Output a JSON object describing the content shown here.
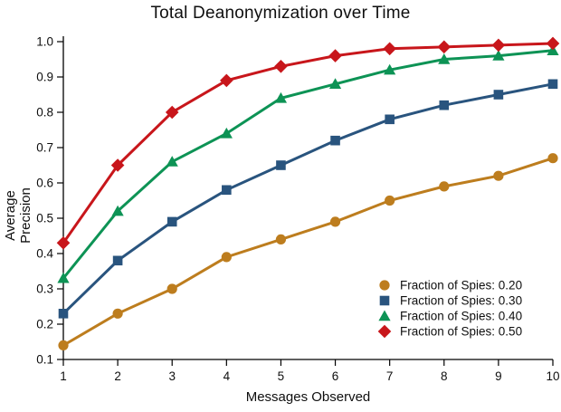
{
  "chart_data": {
    "type": "line",
    "title": "Total Deanonymization over Time",
    "xlabel": "Messages Observed",
    "ylabel": "Average Precision",
    "x": [
      1,
      2,
      3,
      4,
      5,
      6,
      7,
      8,
      9,
      10
    ],
    "xticks": [
      "1",
      "2",
      "3",
      "4",
      "5",
      "6",
      "7",
      "8",
      "9",
      "10"
    ],
    "yticks": [
      "0.1",
      "0.2",
      "0.3",
      "0.4",
      "0.5",
      "0.6",
      "0.7",
      "0.8",
      "0.9",
      "1.0"
    ],
    "xlim": [
      1,
      10
    ],
    "ylim": [
      0.1,
      1.0
    ],
    "grid": false,
    "legend_position": "lower right",
    "axis_color": "#000000",
    "series": [
      {
        "name": "Fraction of Spies: 0.20",
        "marker": "circle",
        "color": "#BD7D1E",
        "values": [
          0.14,
          0.23,
          0.3,
          0.39,
          0.44,
          0.49,
          0.55,
          0.59,
          0.62,
          0.67
        ]
      },
      {
        "name": "Fraction of Spies: 0.30",
        "marker": "square",
        "color": "#29547E",
        "values": [
          0.23,
          0.38,
          0.49,
          0.58,
          0.65,
          0.72,
          0.78,
          0.82,
          0.85,
          0.88
        ]
      },
      {
        "name": "Fraction of Spies: 0.40",
        "marker": "triangle",
        "color": "#0D9355",
        "values": [
          0.33,
          0.52,
          0.66,
          0.74,
          0.84,
          0.88,
          0.92,
          0.95,
          0.96,
          0.975
        ]
      },
      {
        "name": "Fraction of Spies: 0.50",
        "marker": "diamond",
        "color": "#C8161B",
        "values": [
          0.43,
          0.65,
          0.8,
          0.89,
          0.93,
          0.96,
          0.98,
          0.985,
          0.99,
          0.995
        ]
      }
    ]
  }
}
